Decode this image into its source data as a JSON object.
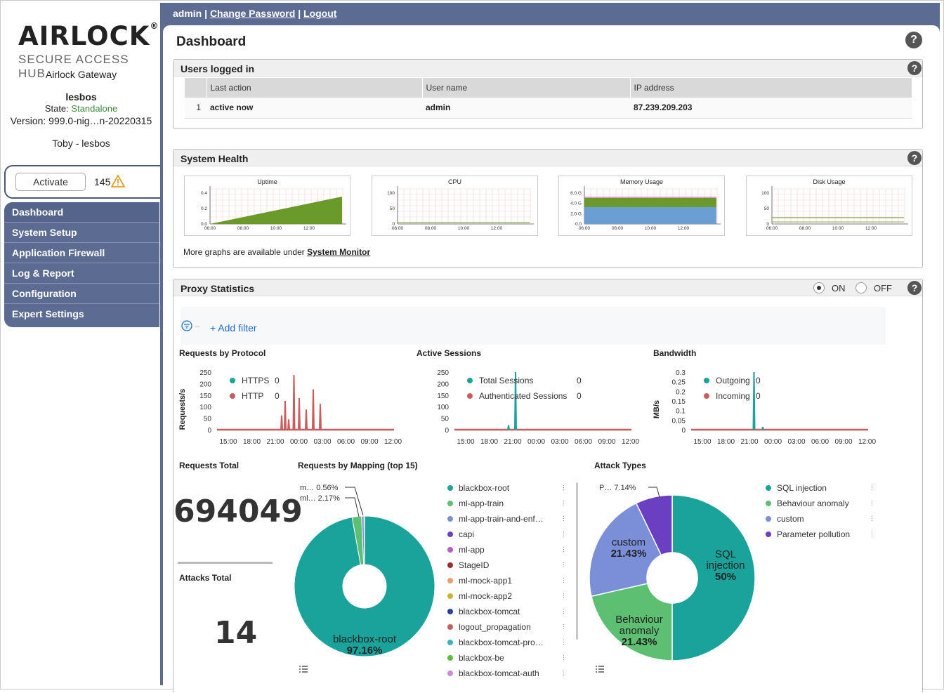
{
  "brand": {
    "logo": "AIRLOCK",
    "logo_mark": "®",
    "subtitle": "SECURE ACCESS HUB",
    "product": "Airlock Gateway"
  },
  "host": {
    "name": "lesbos",
    "state_label": "State:",
    "state": "Standalone",
    "version": "Version: 999.0-nig…n-20220315",
    "user": "Toby - lesbos"
  },
  "activation": {
    "button": "Activate",
    "count": "145"
  },
  "nav": [
    "Dashboard",
    "System Setup",
    "Application Firewall",
    "Log & Report",
    "Configuration",
    "Expert Settings"
  ],
  "topbar": {
    "user": "admin",
    "sep": "|",
    "change_password": "Change Password",
    "logout": "Logout"
  },
  "page": {
    "title": "Dashboard",
    "help": "?"
  },
  "users_logged_in": {
    "title": "Users logged in",
    "columns": [
      "",
      "Last action",
      "User name",
      "IP address"
    ],
    "rows": [
      [
        "1",
        "active now",
        "admin",
        "87.239.209.203"
      ]
    ]
  },
  "system_health": {
    "title": "System Health",
    "charts": [
      {
        "title": "Uptime",
        "yticks": [
          "0.4",
          "0.2",
          "0.0"
        ],
        "xticks": [
          "06:00",
          "08:00",
          "10:00",
          "12:00"
        ]
      },
      {
        "title": "CPU",
        "yticks": [
          "100",
          "50",
          "0"
        ],
        "xticks": [
          "06:00",
          "08:00",
          "10:00",
          "12:00"
        ]
      },
      {
        "title": "Memory Usage",
        "yticks": [
          "6.0 G",
          "4.0 G",
          "2.0 G",
          "0.0"
        ],
        "xticks": [
          "06:00",
          "08:00",
          "10:00",
          "12:00"
        ]
      },
      {
        "title": "Disk Usage",
        "yticks": [
          "100",
          "50",
          "0"
        ],
        "xticks": [
          "06:00",
          "08:00",
          "10:00",
          "12:00"
        ]
      }
    ],
    "more_prefix": "More graphs are available under ",
    "more_link": "System Monitor"
  },
  "proxy_statistics": {
    "title": "Proxy Statistics",
    "on": "ON",
    "off": "OFF",
    "add_filter": "+ Add filter",
    "requests_by_protocol": {
      "title": "Requests by Protocol",
      "ylabel": "Requests/s",
      "legend": [
        {
          "name": "HTTPS",
          "value": "0",
          "color": "#1aa39a"
        },
        {
          "name": "HTTP",
          "value": "0",
          "color": "#c95c5c"
        }
      ]
    },
    "active_sessions": {
      "title": "Active Sessions",
      "legend": [
        {
          "name": "Total Sessions",
          "value": "0",
          "color": "#1aa39a"
        },
        {
          "name": "Authenticated Sessions",
          "value": "0",
          "color": "#c95c5c"
        }
      ]
    },
    "bandwidth": {
      "title": "Bandwidth",
      "ylabel": "MB/s",
      "legend": [
        {
          "name": "Outgoing",
          "value": "0",
          "color": "#1aa39a"
        },
        {
          "name": "Incoming",
          "value": "0",
          "color": "#c95c5c"
        }
      ]
    },
    "time_ticks": [
      "15:00",
      "18:00",
      "21:00",
      "00:00",
      "03:00",
      "06:00",
      "09:00",
      "12:00"
    ],
    "requests_total": {
      "title": "Requests Total",
      "value": "694049"
    },
    "attacks_total": {
      "title": "Attacks Total",
      "value": "14"
    },
    "mapping": {
      "title": "Requests by Mapping (top 15)",
      "legend": [
        {
          "name": "blackbox-root",
          "color": "#1aa39a"
        },
        {
          "name": "ml-app-train",
          "color": "#5cbf72"
        },
        {
          "name": "ml-app-train-and-enf…",
          "color": "#7b8fd9"
        },
        {
          "name": "capi",
          "color": "#6a3fc2"
        },
        {
          "name": "ml-app",
          "color": "#b45cc9"
        },
        {
          "name": "StageID",
          "color": "#9c2b2b"
        },
        {
          "name": "ml-mock-app1",
          "color": "#e6a070"
        },
        {
          "name": "ml-mock-app2",
          "color": "#c9b52e"
        },
        {
          "name": "blackbox-tomcat",
          "color": "#2a3f9a"
        },
        {
          "name": "logout_propagation",
          "color": "#c95c5c"
        },
        {
          "name": "blackbox-tomcat-pro…",
          "color": "#3cb3c2"
        },
        {
          "name": "blackbox-be",
          "color": "#5cbf3a"
        },
        {
          "name": "blackbox-tomcat-auth",
          "color": "#d08ad8"
        }
      ],
      "callouts": [
        {
          "label": "m…",
          "pct": "0.56%"
        },
        {
          "label": "ml…",
          "pct": "2.17%"
        }
      ],
      "main_label": "blackbox-root",
      "main_pct": "97.16%"
    },
    "attack_types": {
      "title": "Attack Types",
      "legend": [
        {
          "name": "SQL injection",
          "color": "#1aa39a"
        },
        {
          "name": "Behaviour anomaly",
          "color": "#5cbf72"
        },
        {
          "name": "custom",
          "color": "#7b8fd9"
        },
        {
          "name": "Parameter pollution",
          "color": "#6a3fc2"
        }
      ],
      "slices": [
        {
          "name": "SQL injection",
          "pct": 50,
          "label1": "SQL",
          "label2": "injection",
          "label3": "50%",
          "color": "#1aa39a"
        },
        {
          "name": "Behaviour anomaly",
          "pct": 21.43,
          "label1": "Behaviour",
          "label2": "anomaly",
          "label3": "21.43%",
          "color": "#5cbf72"
        },
        {
          "name": "custom",
          "pct": 21.43,
          "label1": "custom",
          "label2": "21.43%",
          "color": "#7b8fd9"
        },
        {
          "name": "Parameter pollution",
          "pct": 7.14,
          "label1": "P…",
          "label2": "7.14%",
          "color": "#6a3fc2"
        }
      ]
    }
  }
}
